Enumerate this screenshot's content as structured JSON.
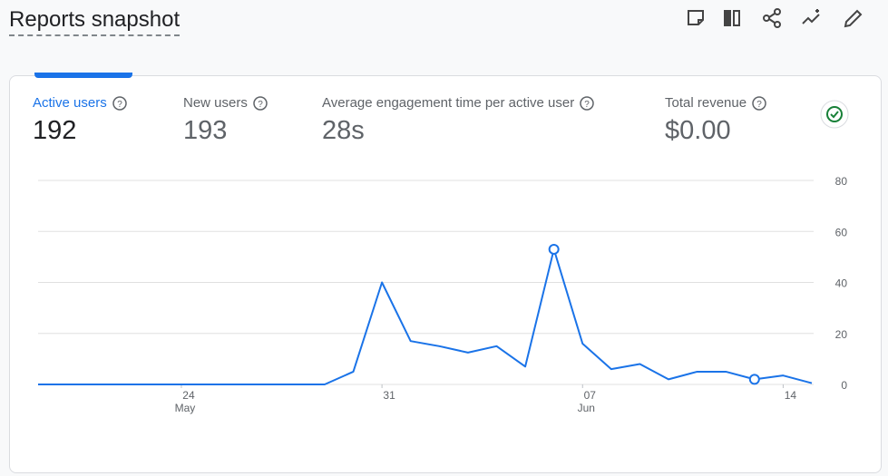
{
  "header": {
    "title": "Reports snapshot"
  },
  "metrics": [
    {
      "label": "Active users",
      "value": "192"
    },
    {
      "label": "New users",
      "value": "193"
    },
    {
      "label": "Average engagement time per active user",
      "value": "28s"
    },
    {
      "label": "Total revenue",
      "value": "$0.00"
    }
  ],
  "chart_data": {
    "type": "line",
    "categories": [
      null,
      null,
      null,
      null,
      null,
      "24",
      null,
      null,
      null,
      null,
      null,
      null,
      "31",
      null,
      null,
      null,
      null,
      null,
      null,
      "07",
      null,
      null,
      null,
      null,
      null,
      null,
      "14",
      null
    ],
    "months": [
      null,
      null,
      null,
      null,
      null,
      "May",
      null,
      null,
      null,
      null,
      null,
      null,
      null,
      null,
      null,
      null,
      null,
      null,
      null,
      "Jun",
      null,
      null,
      null,
      null,
      null,
      null,
      null,
      null
    ],
    "series": [
      {
        "color": "#1a73e8",
        "values": [
          0,
          0,
          0,
          0,
          0,
          0,
          0,
          0,
          0,
          0,
          0,
          5,
          40,
          17,
          15,
          12.5,
          15,
          7,
          53,
          16,
          6,
          8,
          2,
          5,
          5,
          2,
          3.5,
          0.5
        ]
      }
    ],
    "highlight_points": [
      18,
      25
    ],
    "ylim": [
      0,
      80
    ],
    "yticks": [
      0,
      20,
      40,
      60,
      80
    ],
    "grid": true
  }
}
